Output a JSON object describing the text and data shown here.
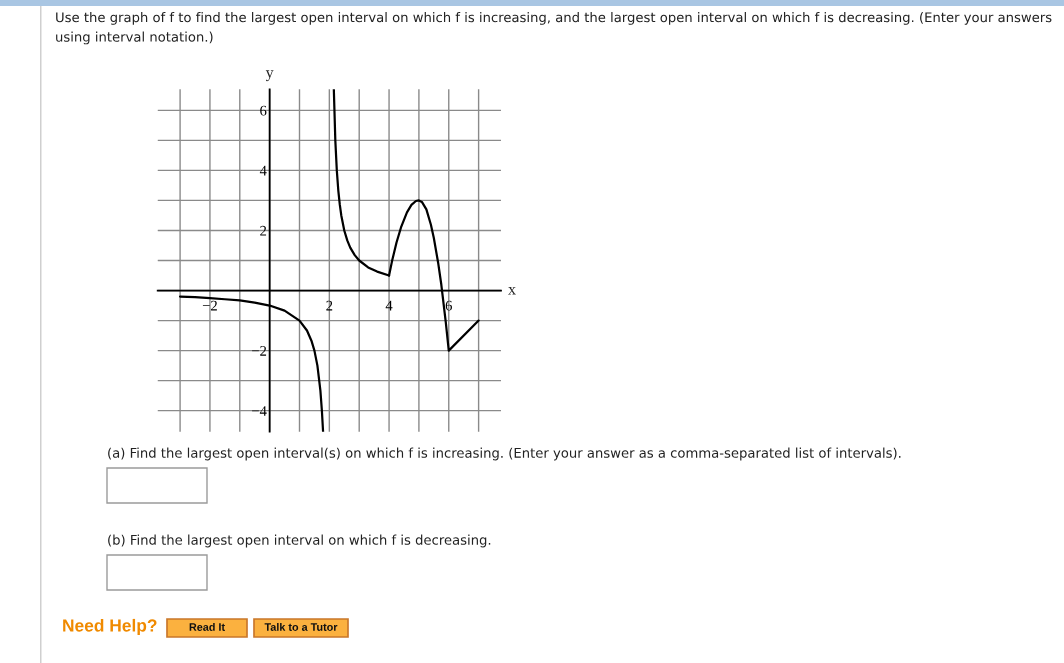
{
  "chart_data": {
    "type": "line",
    "title": "Use the graph of f to find the largest open interval on which f is increasing, and the largest open interval on which f is decreasing. (Enter your answers using interval notation.)",
    "xlabel": "x",
    "ylabel": "y",
    "series": [
      {
        "color": "#000000",
        "x": [
          -3,
          -2.5,
          -2,
          -1.5,
          -1,
          -0.5,
          0,
          0.5,
          1,
          1.25,
          1.4,
          1.5,
          1.6,
          1.7,
          1.75,
          1.79
        ],
        "values": [
          -0.2,
          -0.22,
          -0.25,
          -0.29,
          -0.33,
          -0.4,
          -0.5,
          -0.67,
          -1,
          -1.33,
          -1.67,
          -2,
          -2.5,
          -3.33,
          -4,
          -4.7
        ]
      },
      {
        "color": "#000000",
        "x": [
          2.15,
          2.2,
          2.25,
          2.3,
          2.35,
          2.4,
          2.5,
          2.6,
          2.7,
          2.85,
          3,
          3.3,
          3.6,
          4
        ],
        "values": [
          6.7,
          5,
          4,
          3.33,
          2.86,
          2.5,
          2,
          1.67,
          1.43,
          1.18,
          1,
          0.77,
          0.63,
          0.5
        ]
      },
      {
        "color": "#000000",
        "x": [
          4,
          4.1,
          4.25,
          4.4,
          4.6,
          4.75,
          4.9,
          5,
          5.1,
          5.25,
          5.4,
          5.5,
          5.65,
          5.75,
          5.9,
          6,
          7
        ],
        "values": [
          0.5,
          0.98,
          1.6,
          2.1,
          2.6,
          2.85,
          2.98,
          3,
          2.95,
          2.7,
          2.2,
          1.75,
          0.89,
          0.2,
          -1.05,
          -2,
          -1
        ]
      }
    ],
    "xlim": [
      -3.75,
      7.75
    ],
    "ylim": [
      -4.7,
      6.7
    ],
    "xticks": [
      {
        "value": -3,
        "label": null
      },
      {
        "value": -2,
        "label": "−2"
      },
      {
        "value": -1,
        "label": null
      },
      {
        "value": 0,
        "label": null
      },
      {
        "value": 1,
        "label": null
      },
      2,
      {
        "value": 3,
        "label": null
      },
      4,
      {
        "value": 5,
        "label": null
      },
      6,
      {
        "value": 7,
        "label": null
      }
    ],
    "yticks": [
      {
        "value": -4,
        "label": "−4"
      },
      {
        "value": -3,
        "label": null
      },
      {
        "value": -2,
        "label": "−2"
      },
      {
        "value": -1,
        "label": null
      },
      {
        "value": 0,
        "label": null
      },
      {
        "value": 1,
        "label": null
      },
      2,
      {
        "value": 3,
        "label": null
      },
      4,
      {
        "value": 5,
        "label": null
      },
      6
    ],
    "grid": true,
    "line_style": "solid",
    "annotations": [
      "(a) Find the largest open interval(s) on which f is increasing. (Enter your answer as a comma-separated list of intervals).",
      "(b) Find the largest open interval on which f is decreasing.",
      "Need Help?",
      "Read It",
      "Talk to a Tutor"
    ]
  }
}
